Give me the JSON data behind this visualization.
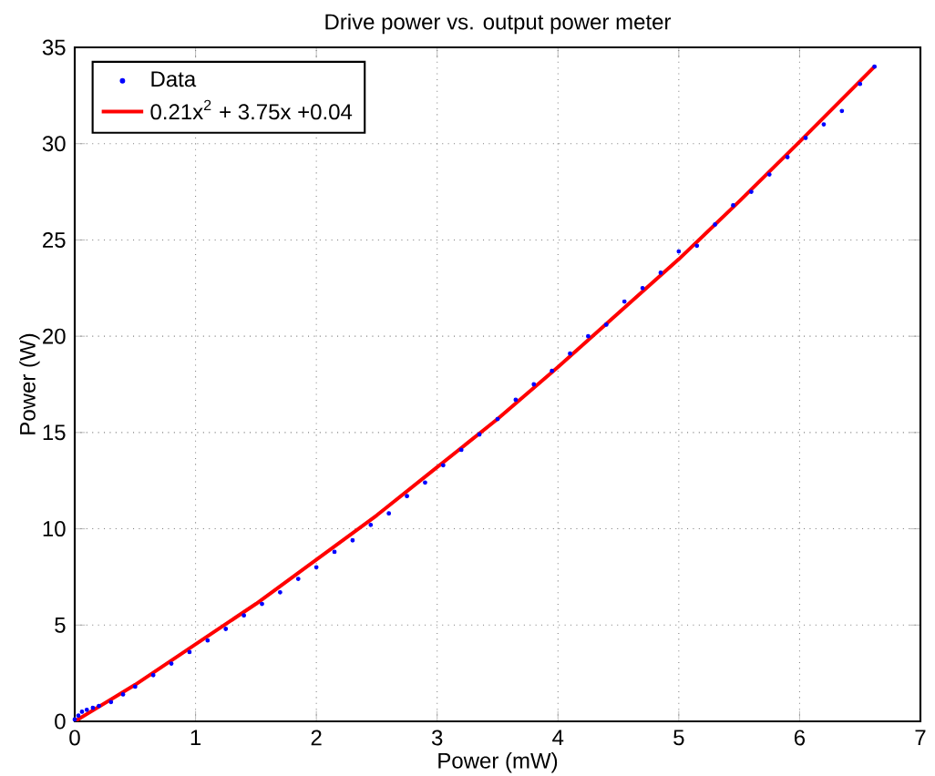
{
  "chart_data": {
    "type": "scatter",
    "title": "Drive power vs. output power meter",
    "xlabel": "Power (mW)",
    "ylabel": "Power (W)",
    "xlim": [
      0,
      7
    ],
    "ylim": [
      0,
      35
    ],
    "xticks": [
      0,
      1,
      2,
      3,
      4,
      5,
      6,
      7
    ],
    "yticks": [
      0,
      5,
      10,
      15,
      20,
      25,
      30,
      35
    ],
    "grid": true,
    "legend": "top left",
    "series": [
      {
        "name": "Data",
        "color": "#0000ff",
        "marker": "circle",
        "x": [
          0.0,
          0.03,
          0.06,
          0.1,
          0.15,
          0.2,
          0.3,
          0.4,
          0.5,
          0.65,
          0.8,
          0.95,
          1.1,
          1.25,
          1.4,
          1.55,
          1.7,
          1.85,
          2.0,
          2.15,
          2.3,
          2.45,
          2.6,
          2.75,
          2.9,
          3.05,
          3.2,
          3.35,
          3.5,
          3.65,
          3.8,
          3.95,
          4.1,
          4.25,
          4.4,
          4.55,
          4.7,
          4.85,
          5.0,
          5.15,
          5.3,
          5.45,
          5.6,
          5.75,
          5.9,
          6.05,
          6.2,
          6.35,
          6.5,
          6.62
        ],
        "values": [
          0.1,
          0.3,
          0.5,
          0.6,
          0.7,
          0.8,
          1.0,
          1.4,
          1.8,
          2.4,
          3.0,
          3.6,
          4.2,
          4.8,
          5.5,
          6.1,
          6.7,
          7.4,
          8.0,
          8.8,
          9.4,
          10.2,
          10.8,
          11.7,
          12.4,
          13.3,
          14.1,
          14.9,
          15.7,
          16.7,
          17.5,
          18.2,
          19.1,
          20.0,
          20.6,
          21.8,
          22.5,
          23.3,
          24.4,
          24.7,
          25.8,
          26.8,
          27.5,
          28.4,
          29.3,
          30.3,
          31.0,
          31.7,
          33.1,
          34.0
        ]
      },
      {
        "name": "0.21x$^{2}$ + 3.75x +0.04",
        "type": "line",
        "color": "#ff0000",
        "marker": "none",
        "line_style": "solid",
        "x": [
          0,
          0.5,
          1,
          1.5,
          2,
          2.5,
          3,
          3.5,
          4,
          4.5,
          5,
          5.5,
          6,
          6.62
        ],
        "values": [
          0.0,
          1.9,
          4.0,
          6.1,
          8.4,
          10.7,
          13.2,
          15.7,
          18.4,
          21.2,
          24.0,
          27.0,
          30.1,
          34.0
        ]
      }
    ]
  }
}
